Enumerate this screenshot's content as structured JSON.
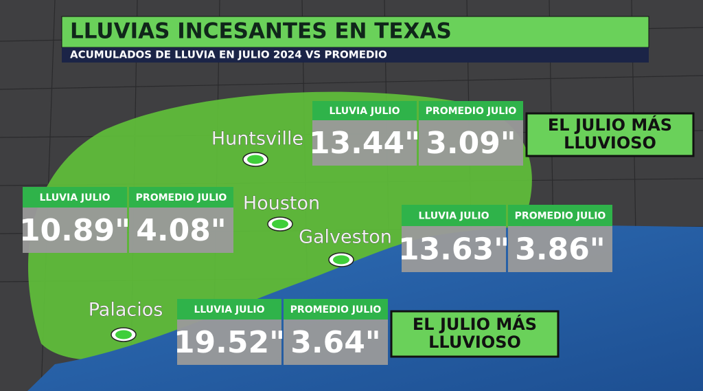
{
  "header": {
    "title": "LLUVIAS INCESANTES EN TEXAS",
    "subtitle": "ACUMULADOS DE LLUVIA EN JULIO 2024 VS PROMEDIO"
  },
  "cities": [
    {
      "label": "Huntsville"
    },
    {
      "label": "Houston"
    },
    {
      "label": "Galveston"
    },
    {
      "label": "Palacios"
    }
  ],
  "stats": [
    {
      "rain_label": "LLUVIA JULIO",
      "rain": "13.44\"",
      "avg_label": "PROMEDIO JULIO",
      "avg": "3.09\""
    },
    {
      "rain_label": "LLUVIA JULIO",
      "rain": "10.89\"",
      "avg_label": "PROMEDIO JULIO",
      "avg": "4.08\""
    },
    {
      "rain_label": "LLUVIA JULIO",
      "rain": "13.63\"",
      "avg_label": "PROMEDIO JULIO",
      "avg": "3.86\""
    },
    {
      "rain_label": "LLUVIA JULIO",
      "rain": "19.52\"",
      "avg_label": "PROMEDIO JULIO",
      "avg": "3.64\""
    }
  ],
  "badges": [
    {
      "lines": [
        "EL JULIO MÁS",
        "LLUVIOSO"
      ]
    },
    {
      "lines": [
        "EL JULIO MÁS",
        "LLUVIOSO"
      ]
    }
  ]
}
